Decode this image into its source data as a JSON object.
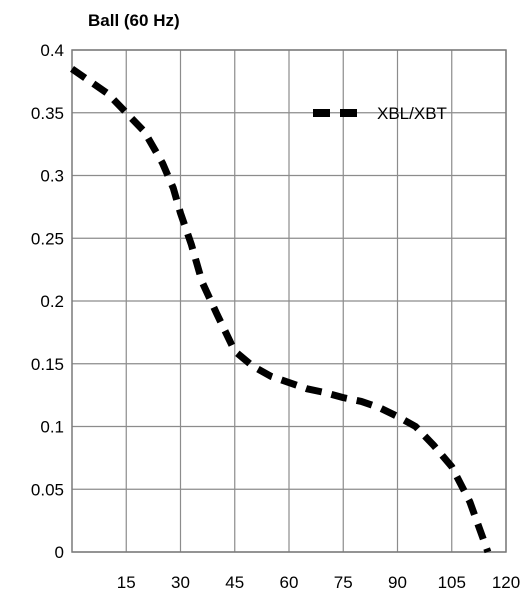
{
  "chart_data": {
    "type": "line",
    "title": "Ball (60 Hz)",
    "xlabel": "",
    "ylabel": "",
    "xlim": [
      0,
      120
    ],
    "ylim": [
      0,
      0.4
    ],
    "x_ticks": [
      15,
      30,
      45,
      60,
      75,
      90,
      105,
      120
    ],
    "x_tick_labels": [
      "15",
      "30",
      "45",
      "60",
      "75",
      "90",
      "105",
      "120"
    ],
    "y_ticks": [
      0,
      0.05,
      0.1,
      0.15,
      0.2,
      0.25,
      0.3,
      0.35,
      0.4
    ],
    "y_tick_labels": [
      "0",
      "0.05",
      "0.1",
      "0.15",
      "0.2",
      "0.25",
      "0.3",
      "0.35",
      "0.4"
    ],
    "grid": true,
    "legend_position": "top-right",
    "series": [
      {
        "name": "XBL/XBT",
        "color": "#000000",
        "style": "dashed",
        "x": [
          0,
          5,
          10,
          15,
          20,
          25,
          28,
          30,
          33,
          36,
          40,
          45,
          50,
          55,
          60,
          65,
          70,
          75,
          80,
          85,
          90,
          95,
          100,
          105,
          110,
          115
        ],
        "y": [
          0.385,
          0.375,
          0.365,
          0.35,
          0.335,
          0.31,
          0.29,
          0.27,
          0.245,
          0.215,
          0.19,
          0.16,
          0.148,
          0.14,
          0.135,
          0.13,
          0.127,
          0.123,
          0.12,
          0.115,
          0.108,
          0.1,
          0.085,
          0.068,
          0.04,
          0.0
        ]
      }
    ]
  }
}
